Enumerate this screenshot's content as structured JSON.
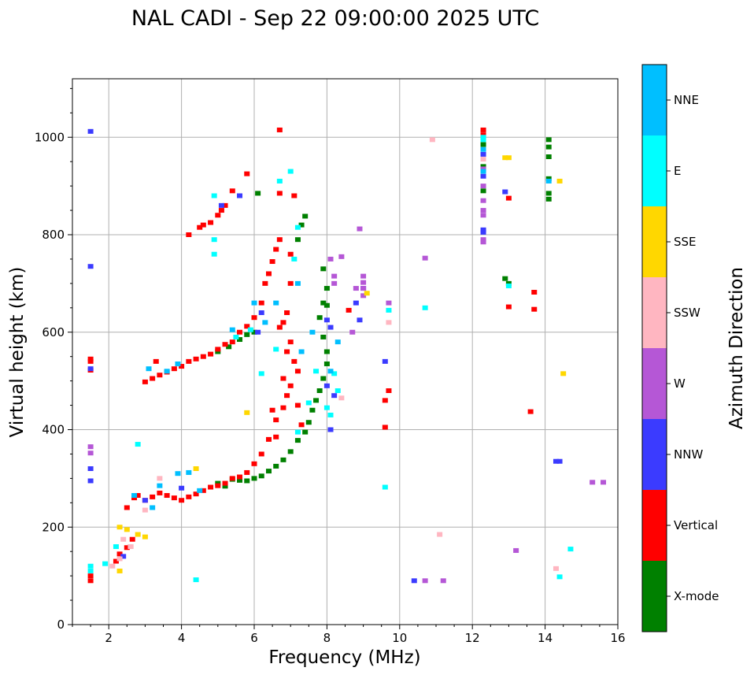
{
  "chart_data": {
    "type": "scatter",
    "title": "NAL CADI - Sep 22 09:00:00 2025 UTC",
    "xlabel": "Frequency (MHz)",
    "ylabel": "Virtual height (km)",
    "xlim": [
      1,
      16
    ],
    "ylim": [
      0,
      1120
    ],
    "xticks": [
      2,
      4,
      6,
      8,
      10,
      12,
      14,
      16
    ],
    "yticks": [
      0,
      200,
      400,
      600,
      800,
      1000
    ],
    "grid": true,
    "colorbar": {
      "label": "Azimuth Direction",
      "categories": [
        {
          "name": "X-mode",
          "color": "#008000"
        },
        {
          "name": "Vertical",
          "color": "#ff0000"
        },
        {
          "name": "NNW",
          "color": "#3b3bff"
        },
        {
          "name": "W",
          "color": "#b557d6"
        },
        {
          "name": "SSW",
          "color": "#ffb6c1"
        },
        {
          "name": "SSE",
          "color": "#ffd700"
        },
        {
          "name": "E",
          "color": "#00ffff"
        },
        {
          "name": "NNE",
          "color": "#00bfff"
        }
      ]
    },
    "series": [
      {
        "name": "X-mode",
        "points": [
          [
            5.4,
            298
          ],
          [
            5.6,
            296
          ],
          [
            5.8,
            295
          ],
          [
            6.0,
            300
          ],
          [
            6.2,
            305
          ],
          [
            6.4,
            315
          ],
          [
            6.6,
            325
          ],
          [
            6.8,
            338
          ],
          [
            7.0,
            355
          ],
          [
            7.2,
            378
          ],
          [
            7.4,
            395
          ],
          [
            7.5,
            415
          ],
          [
            7.6,
            440
          ],
          [
            7.7,
            460
          ],
          [
            7.8,
            480
          ],
          [
            7.9,
            505
          ],
          [
            8.0,
            535
          ],
          [
            8.0,
            560
          ],
          [
            7.9,
            590
          ],
          [
            7.8,
            630
          ],
          [
            7.9,
            660
          ],
          [
            8.0,
            690
          ],
          [
            5.0,
            560
          ],
          [
            5.3,
            570
          ],
          [
            5.6,
            585
          ],
          [
            5.8,
            595
          ],
          [
            6.0,
            600
          ],
          [
            7.2,
            790
          ],
          [
            7.3,
            820
          ],
          [
            7.4,
            838
          ],
          [
            6.1,
            885
          ],
          [
            8.0,
            655
          ],
          [
            7.9,
            730
          ],
          [
            12.9,
            710
          ],
          [
            13.0,
            700
          ],
          [
            14.1,
            995
          ],
          [
            14.1,
            980
          ],
          [
            14.1,
            960
          ],
          [
            14.1,
            915
          ],
          [
            14.1,
            885
          ],
          [
            14.1,
            873
          ],
          [
            12.3,
            890
          ],
          [
            12.3,
            940
          ],
          [
            12.3,
            985
          ],
          [
            5.0,
            290
          ],
          [
            5.2,
            284
          ]
        ]
      },
      {
        "name": "Vertical",
        "points": [
          [
            1.5,
            90
          ],
          [
            1.5,
            100
          ],
          [
            1.5,
            540
          ],
          [
            1.5,
            545
          ],
          [
            1.5,
            522
          ],
          [
            2.2,
            130
          ],
          [
            2.3,
            145
          ],
          [
            2.5,
            158
          ],
          [
            2.6,
            160
          ],
          [
            2.65,
            175
          ],
          [
            2.5,
            240
          ],
          [
            2.7,
            260
          ],
          [
            2.8,
            265
          ],
          [
            3.0,
            255
          ],
          [
            3.2,
            262
          ],
          [
            3.4,
            270
          ],
          [
            3.6,
            265
          ],
          [
            3.8,
            260
          ],
          [
            4.0,
            255
          ],
          [
            4.2,
            262
          ],
          [
            4.4,
            268
          ],
          [
            4.6,
            275
          ],
          [
            4.8,
            282
          ],
          [
            5.0,
            285
          ],
          [
            5.2,
            290
          ],
          [
            5.4,
            300
          ],
          [
            5.6,
            303
          ],
          [
            5.8,
            312
          ],
          [
            6.0,
            330
          ],
          [
            6.2,
            350
          ],
          [
            6.4,
            380
          ],
          [
            6.6,
            420
          ],
          [
            6.8,
            445
          ],
          [
            6.9,
            470
          ],
          [
            7.0,
            490
          ],
          [
            7.2,
            450
          ],
          [
            7.3,
            410
          ],
          [
            6.5,
            440
          ],
          [
            6.6,
            385
          ],
          [
            3.0,
            498
          ],
          [
            3.2,
            505
          ],
          [
            3.4,
            512
          ],
          [
            3.6,
            518
          ],
          [
            3.8,
            525
          ],
          [
            4.0,
            530
          ],
          [
            4.2,
            540
          ],
          [
            4.4,
            545
          ],
          [
            4.6,
            550
          ],
          [
            4.8,
            555
          ],
          [
            5.0,
            565
          ],
          [
            5.2,
            575
          ],
          [
            5.4,
            580
          ],
          [
            5.6,
            600
          ],
          [
            5.8,
            612
          ],
          [
            6.0,
            630
          ],
          [
            6.2,
            660
          ],
          [
            6.3,
            700
          ],
          [
            6.4,
            720
          ],
          [
            6.5,
            745
          ],
          [
            6.6,
            770
          ],
          [
            6.7,
            790
          ],
          [
            7.0,
            760
          ],
          [
            7.0,
            700
          ],
          [
            6.9,
            640
          ],
          [
            6.8,
            620
          ],
          [
            7.0,
            580
          ],
          [
            6.9,
            560
          ],
          [
            7.1,
            540
          ],
          [
            6.7,
            610
          ],
          [
            7.2,
            520
          ],
          [
            6.8,
            505
          ],
          [
            4.2,
            800
          ],
          [
            4.5,
            815
          ],
          [
            4.6,
            820
          ],
          [
            4.8,
            825
          ],
          [
            5.0,
            840
          ],
          [
            5.1,
            850
          ],
          [
            5.2,
            860
          ],
          [
            5.4,
            890
          ],
          [
            5.8,
            925
          ],
          [
            6.7,
            1015
          ],
          [
            6.7,
            885
          ],
          [
            7.1,
            880
          ],
          [
            8.6,
            645
          ],
          [
            9.7,
            480
          ],
          [
            9.6,
            405
          ],
          [
            9.6,
            460
          ],
          [
            12.3,
            1015
          ],
          [
            12.3,
            1005
          ],
          [
            13.0,
            875
          ],
          [
            13.0,
            652
          ],
          [
            13.7,
            647
          ],
          [
            13.7,
            682
          ],
          [
            13.6,
            437
          ],
          [
            3.3,
            540
          ]
        ]
      },
      {
        "name": "NNW",
        "points": [
          [
            1.5,
            1012
          ],
          [
            1.5,
            735
          ],
          [
            1.5,
            525
          ],
          [
            1.5,
            320
          ],
          [
            1.5,
            295
          ],
          [
            2.4,
            140
          ],
          [
            3.0,
            255
          ],
          [
            4.0,
            280
          ],
          [
            5.6,
            880
          ],
          [
            5.1,
            860
          ],
          [
            6.1,
            600
          ],
          [
            6.2,
            640
          ],
          [
            8.1,
            610
          ],
          [
            8.0,
            490
          ],
          [
            8.2,
            470
          ],
          [
            8.1,
            400
          ],
          [
            8.0,
            625
          ],
          [
            8.8,
            660
          ],
          [
            8.9,
            625
          ],
          [
            9.0,
            690
          ],
          [
            9.6,
            540
          ],
          [
            10.4,
            90
          ],
          [
            12.3,
            965
          ],
          [
            12.3,
            920
          ],
          [
            12.3,
            805
          ],
          [
            12.3,
            810
          ],
          [
            12.9,
            888
          ],
          [
            14.3,
            335
          ],
          [
            14.4,
            335
          ]
        ]
      },
      {
        "name": "W",
        "points": [
          [
            1.5,
            365
          ],
          [
            1.5,
            352
          ],
          [
            8.9,
            812
          ],
          [
            8.4,
            755
          ],
          [
            8.1,
            750
          ],
          [
            8.2,
            715
          ],
          [
            8.2,
            700
          ],
          [
            9.0,
            715
          ],
          [
            9.0,
            702
          ],
          [
            9.0,
            690
          ],
          [
            9.0,
            675
          ],
          [
            8.8,
            690
          ],
          [
            9.7,
            660
          ],
          [
            8.7,
            600
          ],
          [
            10.7,
            752
          ],
          [
            10.7,
            90
          ],
          [
            11.2,
            90
          ],
          [
            12.3,
            870
          ],
          [
            12.3,
            850
          ],
          [
            12.3,
            840
          ],
          [
            12.3,
            900
          ],
          [
            12.3,
            935
          ],
          [
            12.3,
            790
          ],
          [
            12.3,
            785
          ],
          [
            13.2,
            152
          ],
          [
            15.3,
            292
          ],
          [
            15.6,
            292
          ]
        ]
      },
      {
        "name": "SSW",
        "points": [
          [
            2.1,
            120
          ],
          [
            2.3,
            135
          ],
          [
            2.6,
            160
          ],
          [
            2.4,
            175
          ],
          [
            3.0,
            235
          ],
          [
            3.4,
            300
          ],
          [
            8.4,
            465
          ],
          [
            9.7,
            620
          ],
          [
            10.9,
            995
          ],
          [
            11.1,
            185
          ],
          [
            14.3,
            115
          ],
          [
            12.3,
            955
          ]
        ]
      },
      {
        "name": "SSE",
        "points": [
          [
            2.3,
            110
          ],
          [
            2.3,
            200
          ],
          [
            2.5,
            195
          ],
          [
            2.8,
            185
          ],
          [
            3.0,
            180
          ],
          [
            4.4,
            320
          ],
          [
            5.8,
            435
          ],
          [
            12.9,
            958
          ],
          [
            13.0,
            958
          ],
          [
            14.4,
            910
          ],
          [
            14.5,
            515
          ],
          [
            9.1,
            680
          ]
        ]
      },
      {
        "name": "E",
        "points": [
          [
            1.5,
            120
          ],
          [
            1.5,
            110
          ],
          [
            1.9,
            125
          ],
          [
            2.2,
            160
          ],
          [
            2.8,
            370
          ],
          [
            4.4,
            92
          ],
          [
            4.9,
            760
          ],
          [
            4.9,
            790
          ],
          [
            4.9,
            880
          ],
          [
            6.7,
            910
          ],
          [
            7.0,
            930
          ],
          [
            7.2,
            815
          ],
          [
            7.1,
            750
          ],
          [
            6.6,
            565
          ],
          [
            6.2,
            515
          ],
          [
            7.2,
            395
          ],
          [
            7.5,
            455
          ],
          [
            8.1,
            430
          ],
          [
            8.3,
            480
          ],
          [
            8.2,
            515
          ],
          [
            8.0,
            445
          ],
          [
            7.7,
            520
          ],
          [
            9.7,
            645
          ],
          [
            9.6,
            282
          ],
          [
            10.7,
            650
          ],
          [
            12.3,
            1000
          ],
          [
            12.3,
            995
          ],
          [
            13.0,
            695
          ],
          [
            14.7,
            155
          ],
          [
            14.4,
            98
          ],
          [
            5.5,
            590
          ],
          [
            5.9,
            605
          ]
        ]
      },
      {
        "name": "NNE",
        "points": [
          [
            2.7,
            265
          ],
          [
            3.2,
            240
          ],
          [
            3.4,
            285
          ],
          [
            3.9,
            310
          ],
          [
            4.2,
            312
          ],
          [
            4.5,
            275
          ],
          [
            3.6,
            520
          ],
          [
            3.9,
            535
          ],
          [
            5.4,
            605
          ],
          [
            6.0,
            660
          ],
          [
            6.3,
            620
          ],
          [
            6.6,
            660
          ],
          [
            7.2,
            700
          ],
          [
            7.3,
            560
          ],
          [
            7.6,
            600
          ],
          [
            8.3,
            580
          ],
          [
            8.1,
            520
          ],
          [
            12.3,
            975
          ],
          [
            12.3,
            930
          ],
          [
            14.1,
            910
          ],
          [
            3.1,
            525
          ]
        ]
      }
    ]
  }
}
